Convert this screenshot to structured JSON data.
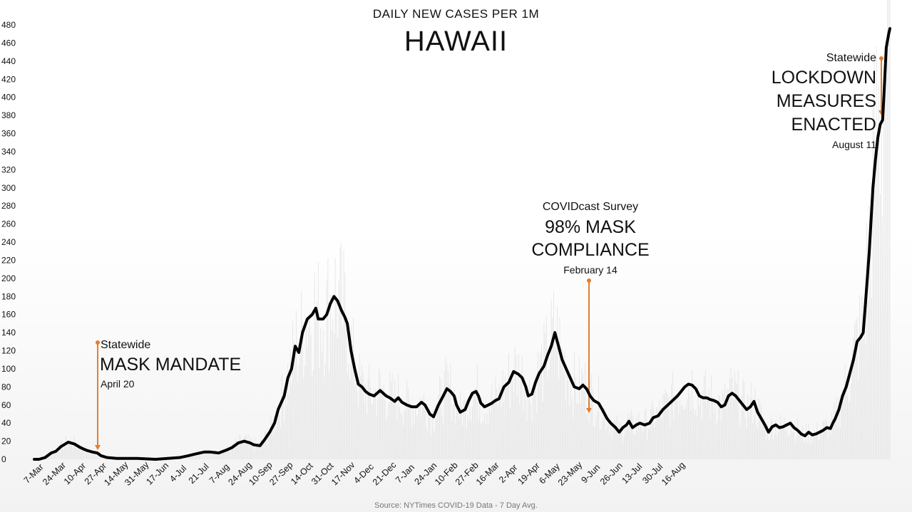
{
  "chart_data": {
    "type": "line",
    "subtitle": "DAILY NEW CASES PER 1M",
    "title": "HAWAII",
    "source": "Source: NYTimes COVID-19 Data - 7 Day Avg.",
    "ylim": [
      0,
      480
    ],
    "y_ticks": [
      "0",
      "20",
      "40",
      "60",
      "80",
      "100",
      "120",
      "140",
      "160",
      "180",
      "200",
      "220",
      "240",
      "260",
      "280",
      "300",
      "320",
      "340",
      "360",
      "380",
      "400",
      "420",
      "440",
      "460",
      "480"
    ],
    "x_ticks": [
      "7-Mar",
      "24-Mar",
      "10-Apr",
      "27-Apr",
      "14-May",
      "31-May",
      "17-Jun",
      "4-Jul",
      "21-Jul",
      "7-Aug",
      "24-Aug",
      "10-Sep",
      "27-Sep",
      "14-Oct",
      "31-Oct",
      "17-Nov",
      "4-Dec",
      "21-Dec",
      "7-Jan",
      "24-Jan",
      "10-Feb",
      "27-Feb",
      "16-Mar",
      "2-Apr",
      "19-Apr",
      "6-May",
      "23-May",
      "9-Jun",
      "26-Jun",
      "13-Jul",
      "30-Jul",
      "16-Aug"
    ],
    "grid": false,
    "series": [
      {
        "name": "7 Day Avg.",
        "color": "#000000",
        "points": [
          [
            0,
            0
          ],
          [
            4,
            0
          ],
          [
            9,
            2
          ],
          [
            14,
            7
          ],
          [
            18,
            9
          ],
          [
            22,
            14
          ],
          [
            28,
            19
          ],
          [
            33,
            17
          ],
          [
            38,
            13
          ],
          [
            43,
            10
          ],
          [
            48,
            8
          ],
          [
            52,
            7
          ],
          [
            55,
            4
          ],
          [
            60,
            2
          ],
          [
            68,
            1
          ],
          [
            85,
            1
          ],
          [
            100,
            0
          ],
          [
            110,
            1
          ],
          [
            120,
            2
          ],
          [
            127,
            4
          ],
          [
            133,
            6
          ],
          [
            140,
            8
          ],
          [
            145,
            8
          ],
          [
            152,
            7
          ],
          [
            158,
            10
          ],
          [
            163,
            13
          ],
          [
            168,
            18
          ],
          [
            173,
            20
          ],
          [
            178,
            18
          ],
          [
            181,
            16
          ],
          [
            186,
            15
          ],
          [
            190,
            22
          ],
          [
            194,
            30
          ],
          [
            198,
            40
          ],
          [
            201,
            55
          ],
          [
            206,
            70
          ],
          [
            209,
            90
          ],
          [
            212,
            100
          ],
          [
            215,
            125
          ],
          [
            218,
            118
          ],
          [
            221,
            140
          ],
          [
            225,
            155
          ],
          [
            229,
            160
          ],
          [
            232,
            167
          ],
          [
            234,
            155
          ],
          [
            238,
            155
          ],
          [
            241,
            160
          ],
          [
            244,
            172
          ],
          [
            247,
            180
          ],
          [
            250,
            175
          ],
          [
            253,
            165
          ],
          [
            256,
            157
          ],
          [
            258,
            150
          ],
          [
            261,
            120
          ],
          [
            264,
            100
          ],
          [
            267,
            83
          ],
          [
            270,
            80
          ],
          [
            273,
            75
          ],
          [
            276,
            72
          ],
          [
            280,
            70
          ],
          [
            285,
            76
          ],
          [
            290,
            70
          ],
          [
            293,
            68
          ],
          [
            297,
            64
          ],
          [
            300,
            68
          ],
          [
            303,
            63
          ],
          [
            307,
            60
          ],
          [
            311,
            58
          ],
          [
            315,
            58
          ],
          [
            319,
            63
          ],
          [
            322,
            60
          ],
          [
            326,
            50
          ],
          [
            329,
            47
          ],
          [
            333,
            60
          ],
          [
            337,
            70
          ],
          [
            340,
            78
          ],
          [
            343,
            75
          ],
          [
            346,
            70
          ],
          [
            348,
            60
          ],
          [
            351,
            52
          ],
          [
            355,
            55
          ],
          [
            358,
            65
          ],
          [
            361,
            73
          ],
          [
            364,
            75
          ],
          [
            366,
            70
          ],
          [
            368,
            62
          ],
          [
            371,
            58
          ],
          [
            374,
            60
          ],
          [
            377,
            62
          ],
          [
            380,
            65
          ],
          [
            383,
            67
          ],
          [
            387,
            80
          ],
          [
            391,
            85
          ],
          [
            395,
            97
          ],
          [
            399,
            94
          ],
          [
            402,
            90
          ],
          [
            405,
            80
          ],
          [
            407,
            70
          ],
          [
            410,
            72
          ],
          [
            413,
            85
          ],
          [
            416,
            95
          ],
          [
            420,
            103
          ],
          [
            423,
            115
          ],
          [
            426,
            125
          ],
          [
            429,
            140
          ],
          [
            432,
            125
          ],
          [
            435,
            110
          ],
          [
            440,
            95
          ],
          [
            445,
            80
          ],
          [
            449,
            78
          ],
          [
            452,
            82
          ],
          [
            455,
            78
          ],
          [
            458,
            70
          ],
          [
            461,
            65
          ],
          [
            465,
            62
          ],
          [
            468,
            55
          ],
          [
            472,
            45
          ],
          [
            475,
            40
          ],
          [
            479,
            35
          ],
          [
            482,
            30
          ],
          [
            485,
            35
          ],
          [
            488,
            38
          ],
          [
            490,
            42
          ],
          [
            493,
            35
          ],
          [
            496,
            38
          ],
          [
            499,
            40
          ],
          [
            503,
            38
          ],
          [
            507,
            40
          ],
          [
            510,
            46
          ],
          [
            514,
            48
          ],
          [
            518,
            55
          ],
          [
            522,
            60
          ],
          [
            526,
            65
          ],
          [
            530,
            70
          ],
          [
            533,
            75
          ],
          [
            536,
            80
          ],
          [
            539,
            83
          ],
          [
            542,
            82
          ],
          [
            545,
            78
          ],
          [
            548,
            70
          ],
          [
            551,
            68
          ],
          [
            554,
            68
          ],
          [
            557,
            66
          ],
          [
            560,
            65
          ],
          [
            563,
            63
          ],
          [
            566,
            58
          ],
          [
            569,
            60
          ],
          [
            572,
            70
          ],
          [
            575,
            73
          ],
          [
            578,
            70
          ],
          [
            581,
            65
          ],
          [
            584,
            60
          ],
          [
            587,
            55
          ],
          [
            590,
            58
          ],
          [
            593,
            64
          ],
          [
            596,
            52
          ],
          [
            599,
            45
          ],
          [
            602,
            38
          ],
          [
            605,
            30
          ],
          [
            608,
            36
          ],
          [
            611,
            38
          ],
          [
            614,
            35
          ],
          [
            617,
            36
          ],
          [
            620,
            38
          ],
          [
            623,
            40
          ],
          [
            626,
            35
          ],
          [
            629,
            32
          ],
          [
            632,
            28
          ],
          [
            635,
            26
          ],
          [
            638,
            30
          ],
          [
            641,
            27
          ],
          [
            644,
            28
          ],
          [
            647,
            30
          ],
          [
            650,
            32
          ],
          [
            653,
            35
          ],
          [
            656,
            34
          ],
          [
            658,
            40
          ],
          [
            660,
            45
          ],
          [
            663,
            55
          ],
          [
            666,
            70
          ],
          [
            669,
            80
          ],
          [
            672,
            95
          ],
          [
            675,
            110
          ],
          [
            678,
            130
          ],
          [
            681,
            135
          ],
          [
            683,
            140
          ],
          [
            685,
            175
          ],
          [
            688,
            230
          ],
          [
            691,
            300
          ],
          [
            693,
            330
          ],
          [
            695,
            355
          ],
          [
            697,
            370
          ],
          [
            699,
            375
          ],
          [
            700,
            400
          ],
          [
            702,
            455
          ],
          [
            704,
            470
          ],
          [
            705,
            476
          ]
        ]
      }
    ],
    "annotations": [
      {
        "small": "Statewide",
        "big": [
          "MASK MANDATE"
        ],
        "date": "April 20",
        "color": "#e37e2f"
      },
      {
        "small": "COVIDcast Survey",
        "big": [
          "98% MASK",
          "COMPLIANCE"
        ],
        "date": "February 14",
        "color": "#e37e2f"
      },
      {
        "small": "Statewide",
        "big": [
          "LOCKDOWN",
          "MEASURES",
          "ENACTED"
        ],
        "date": "August 11",
        "color": "#e37e2f"
      }
    ]
  }
}
